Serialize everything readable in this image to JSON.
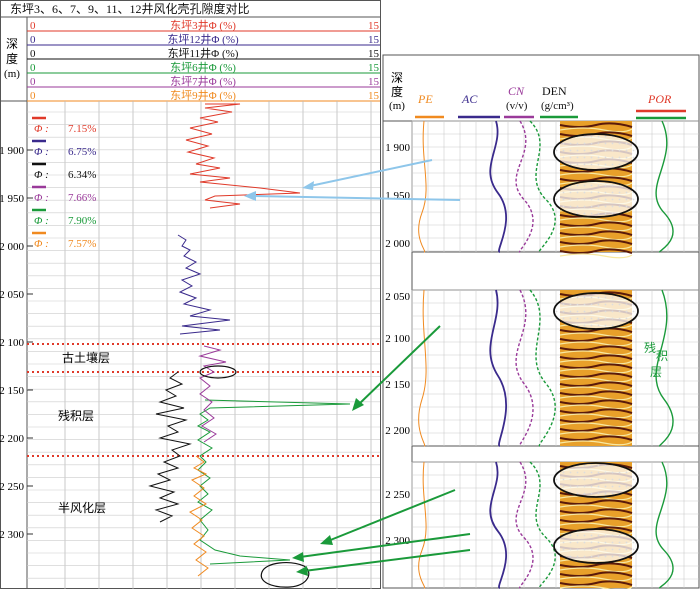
{
  "title": "东坪3、6、7、9、11、12井风化壳孔隙度对比",
  "left": {
    "depth_header": [
      "深",
      "度",
      "(m)"
    ],
    "depth_ticks": [
      "1 900",
      "1 950",
      "2 000",
      "2 050",
      "2 100",
      "2 150",
      "2 200",
      "2 250",
      "2 300"
    ],
    "tracks": [
      {
        "name": "东坪3井Φ (%)",
        "min": "0",
        "max": "15",
        "color": "#e03a2a"
      },
      {
        "name": "东坪12井Φ (%)",
        "min": "0",
        "max": "15",
        "color": "#3a2a8c"
      },
      {
        "name": "东坪11井Φ (%)",
        "min": "0",
        "max": "15",
        "color": "#111111"
      },
      {
        "name": "东坪6井Φ (%)",
        "min": "0",
        "max": "15",
        "color": "#1a9a3a"
      },
      {
        "name": "东坪7井Φ (%)",
        "min": "0",
        "max": "15",
        "color": "#9a3a9a"
      },
      {
        "name": "东坪9井Φ (%)",
        "min": "0",
        "max": "15",
        "color": "#f08a20"
      }
    ],
    "legend": [
      {
        "label": "Φ :",
        "value": "7.15%",
        "color": "#e03a2a"
      },
      {
        "label": "Φ :",
        "value": "6.75%",
        "color": "#3a2a8c"
      },
      {
        "label": "Φ :",
        "value": "6.34%",
        "color": "#111111"
      },
      {
        "label": "Φ :",
        "value": "7.66%",
        "color": "#9a3a9a"
      },
      {
        "label": "Φ :",
        "value": "7.90%",
        "color": "#1a9a3a"
      },
      {
        "label": "Φ :",
        "value": "7.57%",
        "color": "#f08a20"
      }
    ],
    "zones": [
      "古土壤层",
      "残积层",
      "半风化层"
    ]
  },
  "right": {
    "depth_header": [
      "深",
      "度",
      "(m)"
    ],
    "headers": [
      {
        "text": "PE",
        "color": "#f08a20"
      },
      {
        "text": "AC",
        "color": "#3a2a8c"
      },
      {
        "text": "CN",
        "color": "#9a3a9a"
      },
      {
        "text": "(v/v)",
        "color": "#111111"
      },
      {
        "text": "DEN",
        "color": "#111111"
      },
      {
        "text": "(g/cm³)",
        "color": "#111111"
      },
      {
        "text": "POR",
        "color": "#e03a2a"
      }
    ],
    "panel1_ticks": [
      "1 900",
      "1 950",
      "2 000"
    ],
    "panel2_ticks": [
      "2 050",
      "2 100",
      "2 150",
      "2 200"
    ],
    "panel3_ticks": [
      "2 250",
      "2 300"
    ],
    "zone_label": [
      "残",
      "积",
      "层"
    ]
  }
}
